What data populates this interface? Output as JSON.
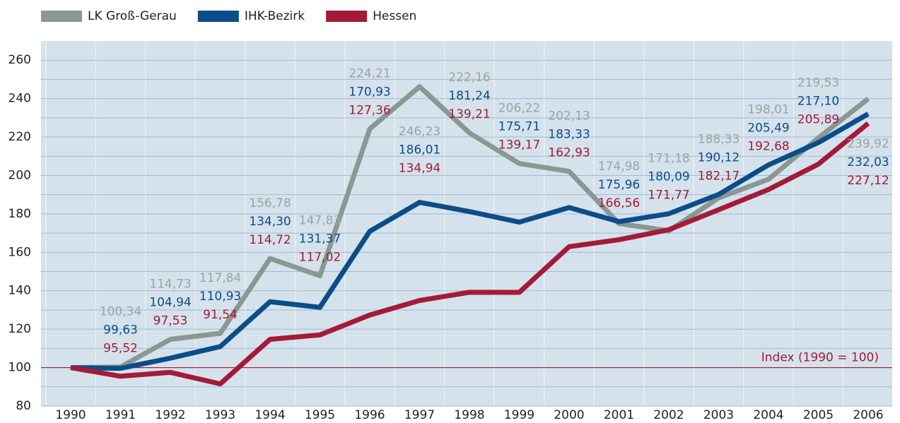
{
  "chart_data": {
    "type": "line",
    "categories": [
      "1990",
      "1991",
      "1992",
      "1993",
      "1994",
      "1995",
      "1996",
      "1997",
      "1998",
      "1999",
      "2000",
      "2001",
      "2002",
      "2003",
      "2004",
      "2005",
      "2006"
    ],
    "series": [
      {
        "name": "LK Groß-Gerau",
        "color": "#8a9793",
        "label_color": "#9aa3a3",
        "values": [
          100,
          100.34,
          114.73,
          117.84,
          156.78,
          147.83,
          224.21,
          246.23,
          222.16,
          206.22,
          202.13,
          174.98,
          171.18,
          188.33,
          198.01,
          219.53,
          239.92
        ],
        "value_labels": [
          null,
          "100,34",
          "114,73",
          "117,84",
          "156,78",
          "147,83",
          "224,21",
          "246,23",
          "222,16",
          "206,22",
          "202,13",
          "174,98",
          "171,18",
          "188,33",
          "198,01",
          "219,53",
          "239,92"
        ]
      },
      {
        "name": "IHK-Bezirk",
        "color": "#0b4d89",
        "label_color": "#0b4d89",
        "values": [
          100,
          99.63,
          104.94,
          110.93,
          134.3,
          131.37,
          170.93,
          186.01,
          181.24,
          175.71,
          183.33,
          175.96,
          180.09,
          190.12,
          205.49,
          217.1,
          232.03
        ],
        "value_labels": [
          null,
          "99,63",
          "104,94",
          "110,93",
          "134,30",
          "131,37",
          "170,93",
          "186,01",
          "181,24",
          "175,71",
          "183,33",
          "175,96",
          "180,09",
          "190,12",
          "205,49",
          "217,10",
          "232,03"
        ]
      },
      {
        "name": "Hessen",
        "color": "#a31b37",
        "label_color": "#a31b37",
        "values": [
          100,
          95.52,
          97.53,
          91.54,
          114.72,
          117.02,
          127.36,
          134.94,
          139.21,
          139.17,
          162.93,
          166.56,
          171.77,
          182.17,
          192.68,
          205.89,
          227.12
        ],
        "value_labels": [
          null,
          "95,52",
          "97,53",
          "91,54",
          "114,72",
          "117,02",
          "127,36",
          "134,94",
          "139,21",
          "139,17",
          "162,93",
          "166,56",
          "171,77",
          "182,17",
          "192,68",
          "205,89",
          "227,12"
        ]
      }
    ],
    "ylim": [
      80,
      270
    ],
    "yticks": [
      80,
      100,
      120,
      140,
      160,
      180,
      200,
      220,
      240,
      260
    ],
    "reference_line": 100,
    "annotation": "Index (1990 = 100)",
    "grid": true,
    "legend": "top-left"
  }
}
